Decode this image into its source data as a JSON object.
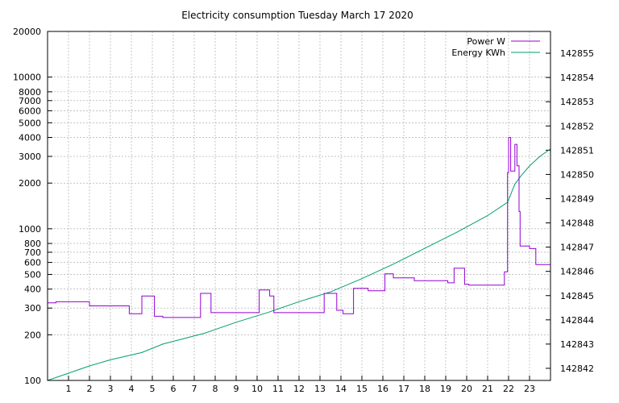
{
  "chart_data": {
    "type": "line",
    "title": "Electricity consumption Tuesday March 17 2020",
    "grid": true,
    "legend_position": "top-right",
    "x_ticks": [
      "1",
      "2",
      "3",
      "4",
      "5",
      "6",
      "7",
      "8",
      "9",
      "10",
      "11",
      "12",
      "13",
      "14",
      "15",
      "16",
      "17",
      "18",
      "19",
      "20",
      "21",
      "22",
      "23"
    ],
    "xlim": [
      0,
      24
    ],
    "y_left": {
      "scale": "log",
      "lim": [
        100,
        20000
      ],
      "ticks": [
        "100",
        "200",
        "300",
        "400",
        "500",
        "600",
        "700",
        "800",
        "1000",
        "2000",
        "3000",
        "4000",
        "5000",
        "6000",
        "7000",
        "8000",
        "10000",
        "20000"
      ]
    },
    "y_right": {
      "lim": [
        142841.5,
        142855.9
      ],
      "ticks": [
        "142842",
        "142843",
        "142844",
        "142845",
        "142846",
        "142847",
        "142848",
        "142849",
        "142850",
        "142851",
        "142852",
        "142853",
        "142854",
        "142855"
      ]
    },
    "series": [
      {
        "name": "Power W",
        "axis": "left",
        "color": "#9400d3",
        "x": [
          0,
          0.4,
          0.4,
          2.0,
          2.0,
          3.9,
          3.9,
          4.5,
          4.5,
          5.1,
          5.1,
          5.5,
          5.5,
          7.3,
          7.3,
          7.8,
          7.8,
          10.1,
          10.1,
          10.6,
          10.6,
          10.8,
          10.8,
          13.2,
          13.2,
          13.8,
          13.8,
          14.1,
          14.1,
          14.6,
          14.6,
          15.3,
          15.3,
          16.1,
          16.1,
          16.5,
          16.5,
          17.5,
          17.5,
          19.1,
          19.1,
          19.4,
          19.4,
          19.9,
          19.9,
          20.1,
          20.1,
          21.8,
          21.8,
          21.95,
          21.95,
          22.0,
          22.0,
          22.1,
          22.1,
          22.3,
          22.3,
          22.4,
          22.4,
          22.5,
          22.5,
          22.55,
          22.55,
          23.0,
          23.0,
          23.3,
          23.3,
          24.0
        ],
        "y": [
          325,
          325,
          330,
          330,
          310,
          310,
          275,
          275,
          360,
          360,
          265,
          265,
          260,
          260,
          375,
          375,
          280,
          280,
          395,
          395,
          360,
          360,
          280,
          280,
          375,
          375,
          290,
          290,
          275,
          275,
          405,
          405,
          390,
          390,
          505,
          505,
          475,
          475,
          455,
          455,
          440,
          440,
          550,
          550,
          430,
          430,
          425,
          425,
          520,
          520,
          2350,
          2350,
          4000,
          4000,
          2400,
          2400,
          3600,
          3600,
          2600,
          2600,
          1300,
          1300,
          770,
          770,
          740,
          740,
          580,
          580
        ]
      },
      {
        "name": "Energy KWh",
        "axis": "right",
        "color": "#009e73",
        "x": [
          0,
          1,
          2,
          3,
          4.5,
          5.5,
          7.5,
          9,
          10.5,
          12,
          13.5,
          15,
          16.5,
          18,
          19.5,
          21,
          21.95,
          22.3,
          22.6,
          23,
          23.5,
          24
        ],
        "y": [
          142841.5,
          142841.8,
          142842.1,
          142842.35,
          142842.65,
          142843.0,
          142843.45,
          142843.9,
          142844.3,
          142844.75,
          142845.15,
          142845.7,
          142846.3,
          142846.95,
          142847.6,
          142848.3,
          142848.85,
          142849.6,
          142849.95,
          142850.35,
          142850.75,
          142851.05
        ]
      }
    ]
  }
}
